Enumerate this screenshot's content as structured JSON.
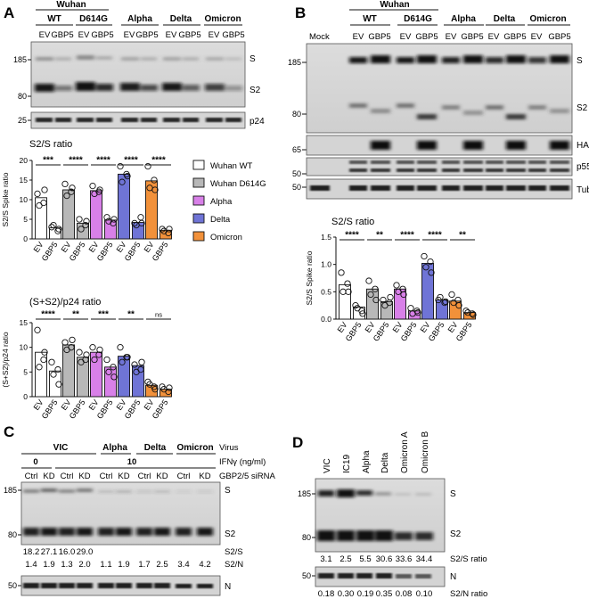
{
  "panels": {
    "A": {
      "letter": "A",
      "strain_group": "Wuhan",
      "strains": [
        "WT",
        "D614G",
        "Alpha",
        "Delta",
        "Omicron"
      ],
      "lane_pair": [
        "EV",
        "GBP5"
      ],
      "blot_mw": [
        "185",
        "80"
      ],
      "blot_bands": [
        "S",
        "S2"
      ],
      "p24_mw": "25",
      "p24_label": "p24",
      "chart_data": [
        {
          "type": "bar",
          "title": "S2/S ratio",
          "ylabel": "S2/S Spike ratio",
          "ylim": [
            0,
            20
          ],
          "yticks": [
            "0",
            "5",
            "10",
            "15",
            "20"
          ],
          "categories": [
            "EV",
            "GBP5",
            "EV",
            "GBP5",
            "EV",
            "GBP5",
            "EV",
            "GBP5",
            "EV",
            "GBP5"
          ],
          "values": [
            10.5,
            2.8,
            12.5,
            4.0,
            12.3,
            4.8,
            16.5,
            4.2,
            14.8,
            2.2
          ],
          "points": [
            [
              11.5,
              9.2,
              8.5,
              12.5
            ],
            [
              3.0,
              2.0,
              3.5,
              2.5
            ],
            [
              14.0,
              12.0,
              11.0,
              13.0
            ],
            [
              5.0,
              3.5,
              2.5,
              4.5
            ],
            [
              13.5,
              12.0,
              11.5,
              12.5
            ],
            [
              5.5,
              4.0,
              4.5,
              5.0
            ],
            [
              18.5,
              16.5,
              14.5,
              16.0
            ],
            [
              4.0,
              5.5,
              3.5,
              4.0
            ],
            [
              18.5,
              15.0,
              13.0,
              12.5
            ],
            [
              2.5,
              1.5,
              2.0,
              2.5
            ]
          ],
          "sig": [
            "***",
            "****",
            "****",
            "****",
            "****"
          ],
          "colors": [
            "#ffffff",
            "#b8b8b8",
            "#d880e8",
            "#6f74d6",
            "#f2913a"
          ]
        },
        {
          "type": "bar",
          "title": "(S+S2)/p24 ratio",
          "ylabel": "(S+S2)/p24 ratio",
          "ylim": [
            0,
            15
          ],
          "yticks": [
            "0",
            "5",
            "10",
            "15"
          ],
          "categories": [
            "EV",
            "GBP5",
            "EV",
            "GBP5",
            "EV",
            "GBP5",
            "EV",
            "GBP5",
            "EV",
            "GBP5"
          ],
          "values": [
            9.0,
            5.2,
            10.5,
            8.0,
            9.0,
            6.0,
            8.2,
            6.3,
            2.3,
            1.5
          ],
          "points": [
            [
              13.5,
              7.5,
              6.0,
              9.0
            ],
            [
              7.0,
              5.5,
              4.5,
              2.5
            ],
            [
              11.0,
              10.0,
              9.5,
              11.5
            ],
            [
              9.0,
              7.5,
              7.0,
              8.5
            ],
            [
              10.0,
              8.5,
              7.5,
              9.5
            ],
            [
              7.5,
              6.0,
              5.0,
              4.0
            ],
            [
              10.0,
              8.0,
              7.0,
              8.0
            ],
            [
              6.5,
              5.5,
              5.0,
              7.0
            ],
            [
              3.0,
              2.0,
              2.5,
              1.5
            ],
            [
              2.0,
              1.0,
              1.5,
              1.8
            ]
          ],
          "sig": [
            "****",
            "**",
            "***",
            "**",
            "ns"
          ],
          "colors": [
            "#ffffff",
            "#b8b8b8",
            "#d880e8",
            "#6f74d6",
            "#f2913a"
          ]
        }
      ],
      "legend": [
        {
          "label": "Wuhan WT",
          "color": "#ffffff"
        },
        {
          "label": "Wuhan D614G",
          "color": "#b8b8b8"
        },
        {
          "label": "Alpha",
          "color": "#d880e8"
        },
        {
          "label": "Delta",
          "color": "#6f74d6"
        },
        {
          "label": "Omicron",
          "color": "#f2913a"
        }
      ]
    },
    "B": {
      "letter": "B",
      "strain_group": "Wuhan",
      "mock": "Mock",
      "strains": [
        "WT",
        "D614G",
        "Alpha",
        "Delta",
        "Omicron"
      ],
      "lane_pair": [
        "EV",
        "GBP5"
      ],
      "blot_mw": [
        "185",
        "80"
      ],
      "blot_bands": [
        "S",
        "S2"
      ],
      "ha_mw": "65",
      "ha_label": "HA-GBP",
      "p55_mw": "50",
      "p55_label": "p55",
      "tub_mw": "50",
      "tub_label": "Tubulin",
      "chart_data": {
        "type": "bar",
        "title": "S2/S ratio",
        "ylabel": "S2/S Spike ratio",
        "ylim": [
          0,
          1.5
        ],
        "yticks": [
          "0.0",
          "0.5",
          "1.0",
          "1.5"
        ],
        "categories": [
          "EV",
          "GBP5",
          "EV",
          "GBP5",
          "EV",
          "GBP5",
          "EV",
          "GBP5",
          "EV",
          "GBP5"
        ],
        "values": [
          0.63,
          0.22,
          0.55,
          0.32,
          0.55,
          0.15,
          1.02,
          0.35,
          0.33,
          0.12
        ],
        "points": [
          [
            0.85,
            0.65,
            0.5,
            0.5
          ],
          [
            0.25,
            0.15,
            0.2,
            0.1
          ],
          [
            0.7,
            0.55,
            0.45,
            0.35
          ],
          [
            0.35,
            0.3,
            0.25,
            0.4
          ],
          [
            0.62,
            0.55,
            0.5,
            0.45
          ],
          [
            0.2,
            0.15,
            0.1,
            0.12
          ],
          [
            1.15,
            1.05,
            0.95,
            0.85
          ],
          [
            0.35,
            0.3,
            0.4,
            0.32
          ],
          [
            0.45,
            0.35,
            0.3,
            0.25
          ],
          [
            0.15,
            0.1,
            0.12,
            0.08
          ]
        ],
        "sig": [
          "****",
          "**",
          "****",
          "****",
          "**"
        ],
        "colors": [
          "#ffffff",
          "#b8b8b8",
          "#d880e8",
          "#6f74d6",
          "#f2913a"
        ]
      }
    },
    "C": {
      "letter": "C",
      "vic": "VIC",
      "others": [
        "Alpha",
        "Delta",
        "Omicron"
      ],
      "virus_label": "Virus",
      "ifn_0": "0",
      "ifn_10": "10",
      "ifn_label": "IFNγ (ng/ml)",
      "sirna_label": "GBP2/5 siRNA",
      "lanes": [
        "Ctrl",
        "KD",
        "Ctrl",
        "KD",
        "Ctrl",
        "KD",
        "Ctrl",
        "KD",
        "Ctrl",
        "KD"
      ],
      "blot_mw": [
        "185",
        "80"
      ],
      "blot_bands": [
        "S",
        "S2"
      ],
      "s2s_values": [
        "18.2",
        "27.1",
        "16.0",
        "29.0"
      ],
      "s2s_label": "S2/S",
      "s2n_values": [
        "1.4",
        "1.9",
        "1.3",
        "2.0",
        "1.1",
        "1.9",
        "1.7",
        "2.5",
        "3.4",
        "4.2"
      ],
      "s2n_label": "S2/N",
      "n_mw": "50",
      "n_label": "N"
    },
    "D": {
      "letter": "D",
      "lanes": [
        "VIC",
        "IC19",
        "Alpha",
        "Delta",
        "Omicron A",
        "Omicron B"
      ],
      "blot_mw": [
        "185",
        "80"
      ],
      "blot_bands": [
        "S",
        "S2"
      ],
      "s2s_values": [
        "3.1",
        "2.5",
        "5.5",
        "30.6",
        "33.6",
        "34.4"
      ],
      "s2s_label": "S2/S ratio",
      "n_mw": "50",
      "n_label": "N",
      "s2n_values": [
        "0.18",
        "0.30",
        "0.19",
        "0.35",
        "0.08",
        "0.10"
      ],
      "s2n_label": "S2/N ratio"
    }
  }
}
